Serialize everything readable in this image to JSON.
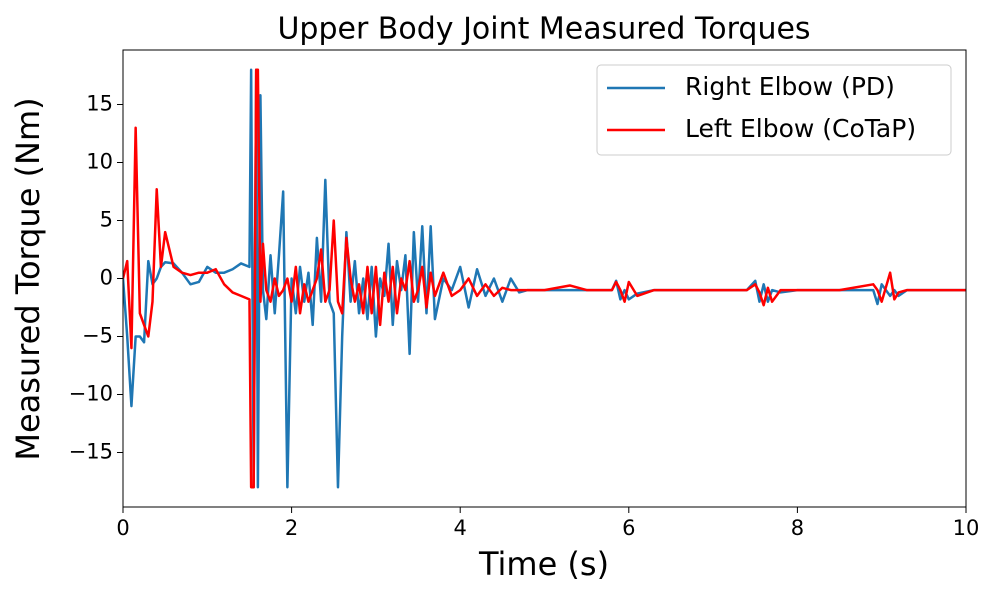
{
  "chart_data": {
    "type": "line",
    "title": "Upper Body Joint Measured Torques",
    "x_label": "Time (s)",
    "y_label": "Measured Torque (Nm)",
    "xlim": [
      0,
      10
    ],
    "ylim": [
      -19.7,
      19.7
    ],
    "xticks": [
      0,
      2,
      4,
      6,
      8,
      10
    ],
    "yticks": [
      {
        "value": -15,
        "label": "−15"
      },
      {
        "value": -10,
        "label": "−10"
      },
      {
        "value": -5,
        "label": "−5"
      },
      0,
      5,
      10,
      15
    ],
    "legend": "upper right",
    "x": [
      0,
      0.05,
      0.1,
      0.15,
      0.2,
      0.25,
      0.3,
      0.35,
      0.4,
      0.45,
      0.5,
      0.6,
      0.7,
      0.8,
      0.9,
      1.0,
      1.1,
      1.2,
      1.3,
      1.4,
      1.5,
      1.52,
      1.55,
      1.58,
      1.6,
      1.63,
      1.66,
      1.7,
      1.75,
      1.8,
      1.85,
      1.9,
      1.95,
      2.0,
      2.05,
      2.1,
      2.15,
      2.2,
      2.25,
      2.3,
      2.35,
      2.4,
      2.45,
      2.5,
      2.55,
      2.6,
      2.65,
      2.7,
      2.75,
      2.8,
      2.85,
      2.9,
      2.95,
      3.0,
      3.05,
      3.1,
      3.15,
      3.2,
      3.25,
      3.3,
      3.35,
      3.4,
      3.45,
      3.5,
      3.55,
      3.6,
      3.65,
      3.7,
      3.8,
      3.9,
      4.0,
      4.1,
      4.2,
      4.3,
      4.4,
      4.5,
      4.6,
      4.7,
      4.8,
      5.0,
      5.3,
      5.5,
      5.8,
      5.85,
      5.9,
      5.95,
      6.0,
      6.1,
      6.3,
      7.0,
      7.4,
      7.5,
      7.55,
      7.6,
      7.65,
      7.7,
      7.8,
      8.0,
      8.5,
      8.9,
      8.95,
      9.0,
      9.1,
      9.15,
      9.2,
      9.3,
      9.5,
      10.0
    ],
    "series": [
      {
        "name": "Right Elbow (PD)",
        "color": "#1f77b4",
        "values": [
          0,
          -5,
          -11,
          -5,
          -5,
          -5.5,
          1.5,
          -0.5,
          0,
          1,
          1.4,
          1.3,
          0.5,
          -0.5,
          -0.3,
          1,
          0.5,
          0.5,
          0.8,
          1.3,
          1,
          18,
          -18,
          18,
          -18,
          15.8,
          -1,
          -3.5,
          2,
          -3,
          2,
          7.5,
          -18,
          0,
          -3,
          1,
          -2,
          0.5,
          -4,
          3.5,
          -2,
          8.5,
          -2,
          -3,
          -18,
          -5,
          4,
          -2,
          1.5,
          -3,
          0,
          -3.5,
          1,
          -5,
          0,
          -1.5,
          3,
          -4,
          1.5,
          -1,
          2,
          -6.5,
          4,
          -2,
          4.5,
          -3,
          4.5,
          -3.5,
          0,
          -1,
          1,
          -2.5,
          0.8,
          -1.5,
          0,
          -2,
          0,
          -1.2,
          -1,
          -1,
          -1,
          -1,
          -1,
          -0.2,
          -1.8,
          -1,
          -1.8,
          -1.3,
          -1,
          -1,
          -1,
          -0.2,
          -2,
          -0.5,
          -2,
          -1,
          -1.2,
          -1,
          -1,
          -1,
          -2.2,
          -0.5,
          -1.5,
          -1,
          -1.5,
          -1,
          -1,
          -1
        ]
      },
      {
        "name": "Left Elbow (CoTaP)",
        "color": "#ff0000",
        "values": [
          0,
          1.5,
          -6,
          13,
          -3,
          -4,
          -5,
          -2,
          7.7,
          1,
          4,
          1,
          0.5,
          0.3,
          0.5,
          0.5,
          0.8,
          -0.5,
          -1.2,
          -1.5,
          -1.8,
          -18,
          -18,
          18,
          18,
          -2,
          3,
          -1,
          -2,
          0,
          -1.5,
          -1,
          0,
          -2,
          1,
          -3,
          -0.5,
          -2,
          -1,
          0,
          2.5,
          -2,
          -1,
          5,
          -2,
          -3,
          3.5,
          0,
          -2,
          -0.5,
          -3,
          1,
          -3,
          1,
          -4,
          0.5,
          -2,
          1,
          -3,
          0,
          -1,
          1.5,
          -2,
          -1,
          1,
          -2.5,
          0.5,
          -1.5,
          0.5,
          -1.5,
          -1,
          0,
          -1.5,
          -0.5,
          -1.5,
          -0.8,
          -1,
          -1,
          -1,
          -1,
          -0.6,
          -1,
          -1,
          -0.3,
          -1,
          -2,
          -0.3,
          -1.5,
          -1,
          -1,
          -1,
          -0.5,
          -1.2,
          -2.3,
          -0.8,
          -2,
          -1,
          -1,
          -1,
          -0.5,
          -1,
          -2,
          0.5,
          -1.8,
          -1.2,
          -1,
          -1,
          -1
        ]
      }
    ]
  }
}
